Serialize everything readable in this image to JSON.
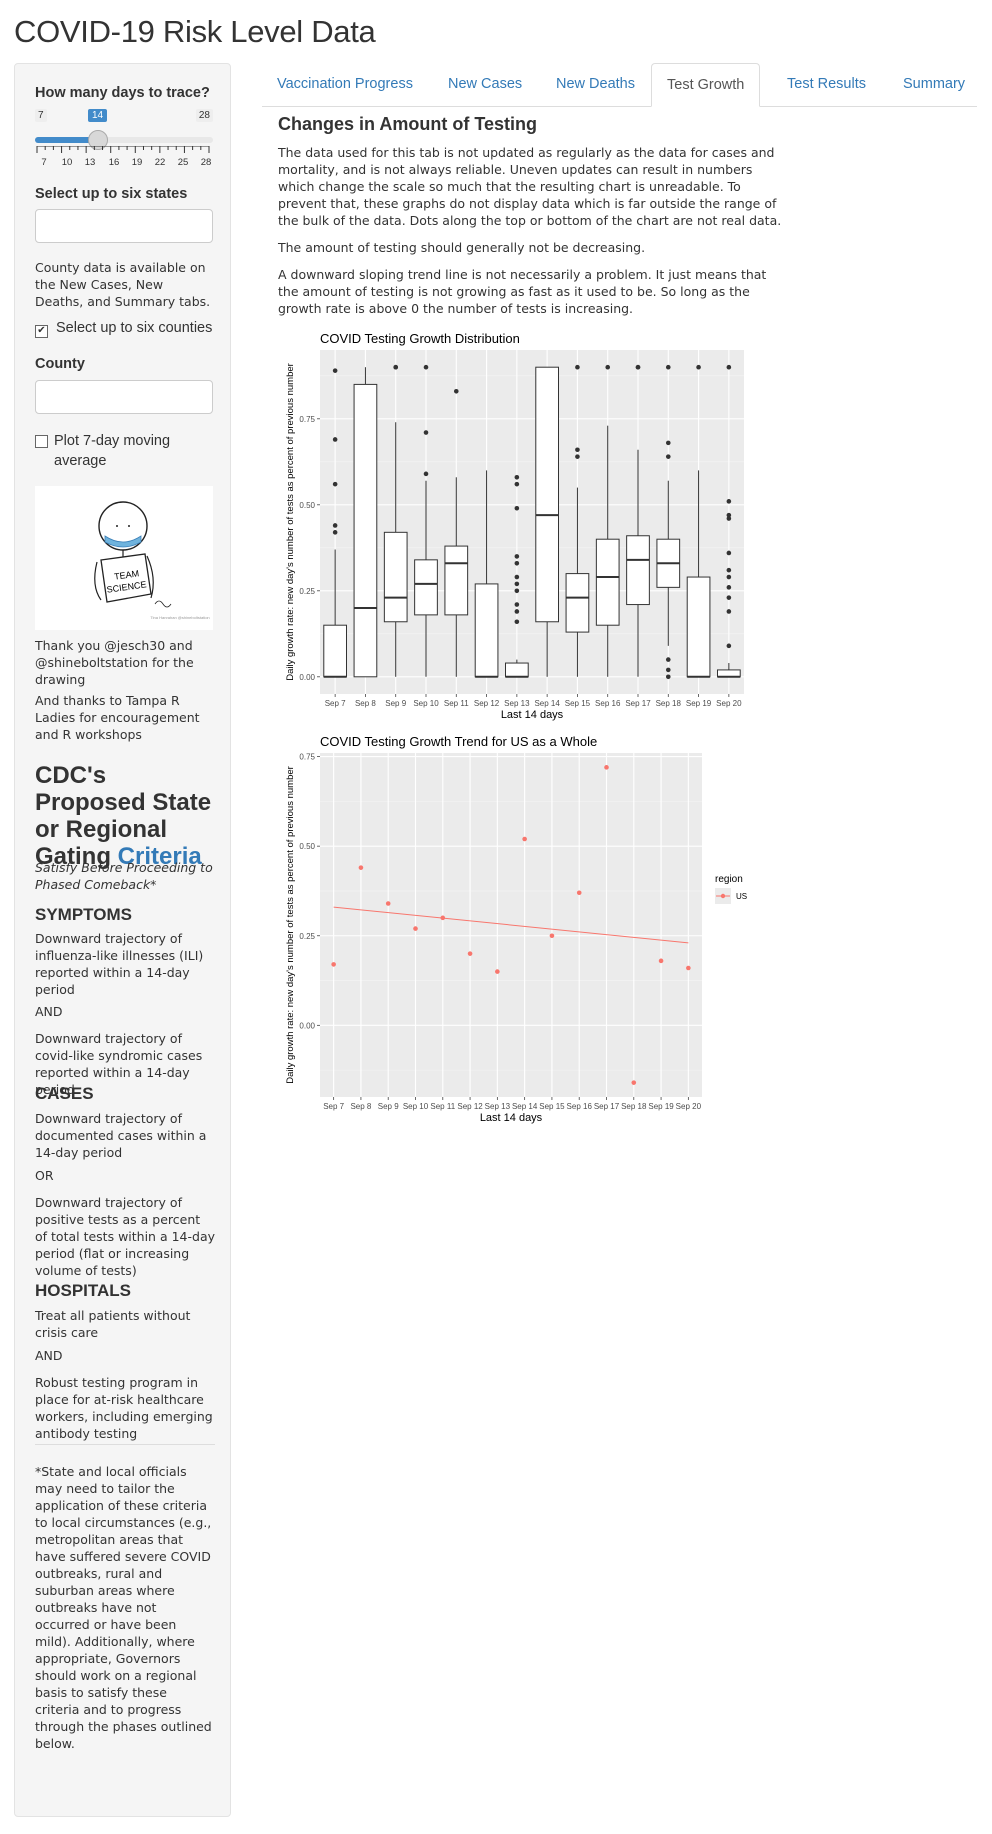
{
  "app": {
    "title": "COVID-19 Risk Level Data"
  },
  "sidebar": {
    "slider": {
      "label": "How many days to trace?",
      "min": 7,
      "max": 28,
      "value": 14,
      "ticks": [
        "7",
        "10",
        "13",
        "16",
        "19",
        "22",
        "25",
        "28"
      ]
    },
    "states": {
      "label": "Select up to six states",
      "value": ""
    },
    "county_note": "County data is available on the New Cases, New Deaths, and Summary tabs.",
    "county_checkbox": {
      "label": "Select up to six counties",
      "checked": true
    },
    "county": {
      "label": "County",
      "value": ""
    },
    "moving_avg": {
      "label": "Plot 7-day moving average",
      "checked": false
    },
    "drawing": {
      "line1": "TEAM",
      "line2": "SCIENCE",
      "credit": "Tina Hanrahan @shineboltstation"
    },
    "thanks1": "Thank you @jesch30 and @shineboltstation for the drawing",
    "thanks2": "And thanks to Tampa R Ladies for encouragement and R workshops",
    "cdc": {
      "title_pre": "CDC's Proposed State or Regional Gating",
      "title_link": "Criteria",
      "subtitle": "Satisfy Before Proceeding to Phased Comeback*",
      "symptoms_h": "SYMPTOMS",
      "symptoms_1": "Downward trajectory of influenza-like illnesses (ILI) reported within a 14-day period",
      "and1": "AND",
      "symptoms_2": "Downward trajectory of covid-like syndromic cases reported within a 14-day period",
      "cases_h": "CASES",
      "cases_1": "Downward trajectory of documented cases within a 14-day period",
      "or1": "OR",
      "cases_2": "Downward trajectory of positive tests as a percent of total tests within a 14-day period (flat or increasing volume of tests)",
      "hospitals_h": "HOSPITALS",
      "hosp_1": "Treat all patients without crisis care",
      "and2": "AND",
      "hosp_2": "Robust testing program in place for at-risk healthcare workers, including emerging antibody testing",
      "footnote": "*State and local officials may need to tailor the application of these criteria to local circumstances (e.g., metropolitan areas that have suffered severe COVID outbreaks, rural and suburban areas where outbreaks have not occurred or have been mild). Additionally, where appropriate, Governors should work on a regional basis to satisfy these criteria and to progress through the phases outlined below."
    }
  },
  "tabs": [
    {
      "label": "Vaccination Progress",
      "active": false
    },
    {
      "label": "New Cases",
      "active": false
    },
    {
      "label": "New Deaths",
      "active": false
    },
    {
      "label": "Test Growth",
      "active": true
    },
    {
      "label": "Test Results",
      "active": false
    },
    {
      "label": "Summary",
      "active": false
    }
  ],
  "main": {
    "heading": "Changes in Amount of Testing",
    "p1": "The data used for this tab is not updated as regularly as the data for cases and mortality, and is not always reliable. Uneven updates can result in numbers which change the scale so much that the resulting chart is unreadable. To prevent that, these graphs do not display data which is far outside the range of the bulk of the data. Dots along the top or bottom of the chart are not real data.",
    "p2": "The amount of testing should generally not be decreasing.",
    "p3": "A downward sloping trend line is not necessarily a problem. It just means that the amount of testing is not growing as fast as it used to be. So long as the growth rate is above 0 the number of tests is increasing."
  },
  "colors": {
    "accent": "#337ab7",
    "slider": "#428bca",
    "panel_bg": "#ebebeb",
    "series_us": "#f8766d"
  },
  "chart_data": [
    {
      "type": "boxplot",
      "title": "COVID Testing Growth Distribution",
      "xlabel": "Last 14 days",
      "ylabel": "Daily growth rate: new day's number of tests as percent of previous number",
      "ylim": [
        -0.05,
        0.95
      ],
      "yticks": [
        "0.00",
        "0.25",
        "0.50",
        "0.75"
      ],
      "grid": true,
      "categories": [
        "Sep 7",
        "Sep 8",
        "Sep 9",
        "Sep 10",
        "Sep 11",
        "Sep 12",
        "Sep 13",
        "Sep 14",
        "Sep 15",
        "Sep 16",
        "Sep 17",
        "Sep 18",
        "Sep 19",
        "Sep 20"
      ],
      "boxes": [
        {
          "x": "Sep 7",
          "lo": 0.0,
          "q1": 0.0,
          "med": 0.0,
          "q3": 0.15,
          "hi": 0.37,
          "outliers": [
            0.89,
            0.69,
            0.56,
            0.44,
            0.42
          ]
        },
        {
          "x": "Sep 8",
          "lo": 0.0,
          "q1": 0.0,
          "med": 0.2,
          "q3": 0.85,
          "hi": 0.9,
          "outliers": []
        },
        {
          "x": "Sep 9",
          "lo": 0.0,
          "q1": 0.16,
          "med": 0.23,
          "q3": 0.42,
          "hi": 0.74,
          "outliers": [
            0.9,
            0.9
          ]
        },
        {
          "x": "Sep 10",
          "lo": 0.0,
          "q1": 0.18,
          "med": 0.27,
          "q3": 0.34,
          "hi": 0.57,
          "outliers": [
            0.9,
            0.71,
            0.59
          ]
        },
        {
          "x": "Sep 11",
          "lo": 0.0,
          "q1": 0.18,
          "med": 0.33,
          "q3": 0.38,
          "hi": 0.58,
          "outliers": [
            0.83
          ]
        },
        {
          "x": "Sep 12",
          "lo": 0.0,
          "q1": 0.0,
          "med": 0.0,
          "q3": 0.27,
          "hi": 0.6,
          "outliers": []
        },
        {
          "x": "Sep 13",
          "lo": 0.0,
          "q1": 0.0,
          "med": 0.0,
          "q3": 0.04,
          "hi": 0.05,
          "outliers": [
            0.58,
            0.56,
            0.49,
            0.35,
            0.33,
            0.29,
            0.27,
            0.25,
            0.21,
            0.19,
            0.16
          ]
        },
        {
          "x": "Sep 14",
          "lo": 0.0,
          "q1": 0.16,
          "med": 0.47,
          "q3": 0.9,
          "hi": 0.9,
          "outliers": []
        },
        {
          "x": "Sep 15",
          "lo": 0.0,
          "q1": 0.13,
          "med": 0.23,
          "q3": 0.3,
          "hi": 0.55,
          "outliers": [
            0.9,
            0.66,
            0.64
          ]
        },
        {
          "x": "Sep 16",
          "lo": 0.0,
          "q1": 0.15,
          "med": 0.29,
          "q3": 0.4,
          "hi": 0.73,
          "outliers": [
            0.9
          ]
        },
        {
          "x": "Sep 17",
          "lo": 0.0,
          "q1": 0.21,
          "med": 0.34,
          "q3": 0.41,
          "hi": 0.66,
          "outliers": [
            0.9,
            0.9
          ]
        },
        {
          "x": "Sep 18",
          "lo": 0.09,
          "q1": 0.26,
          "med": 0.33,
          "q3": 0.4,
          "hi": 0.57,
          "outliers": [
            0.9,
            0.68,
            0.64,
            0.05,
            0.02,
            0.0
          ]
        },
        {
          "x": "Sep 19",
          "lo": 0.0,
          "q1": 0.0,
          "med": 0.0,
          "q3": 0.29,
          "hi": 0.6,
          "outliers": [
            0.9
          ]
        },
        {
          "x": "Sep 20",
          "lo": 0.0,
          "q1": 0.0,
          "med": 0.0,
          "q3": 0.02,
          "hi": 0.04,
          "outliers": [
            0.9,
            0.51,
            0.47,
            0.46,
            0.36,
            0.31,
            0.29,
            0.26,
            0.23,
            0.19,
            0.09
          ]
        }
      ]
    },
    {
      "type": "scatter",
      "title": "COVID Testing Growth Trend for US as a Whole",
      "xlabel": "Last 14 days",
      "ylabel": "Daily growth rate: new day's number of tests as percent of previous number",
      "ylim": [
        -0.2,
        0.76
      ],
      "yticks": [
        "0.00",
        "0.25",
        "0.50",
        "0.75"
      ],
      "grid": true,
      "legend": {
        "title": "region",
        "position": "right"
      },
      "categories": [
        "Sep 7",
        "Sep 8",
        "Sep 9",
        "Sep 10",
        "Sep 11",
        "Sep 12",
        "Sep 13",
        "Sep 14",
        "Sep 15",
        "Sep 16",
        "Sep 17",
        "Sep 18",
        "Sep 19",
        "Sep 20"
      ],
      "series": [
        {
          "name": "US",
          "values": [
            0.17,
            0.44,
            0.34,
            0.27,
            0.3,
            0.2,
            0.15,
            0.52,
            0.25,
            0.37,
            0.72,
            -0.16,
            0.18,
            0.16
          ]
        }
      ],
      "trend": {
        "start": 0.33,
        "end": 0.23
      }
    }
  ]
}
